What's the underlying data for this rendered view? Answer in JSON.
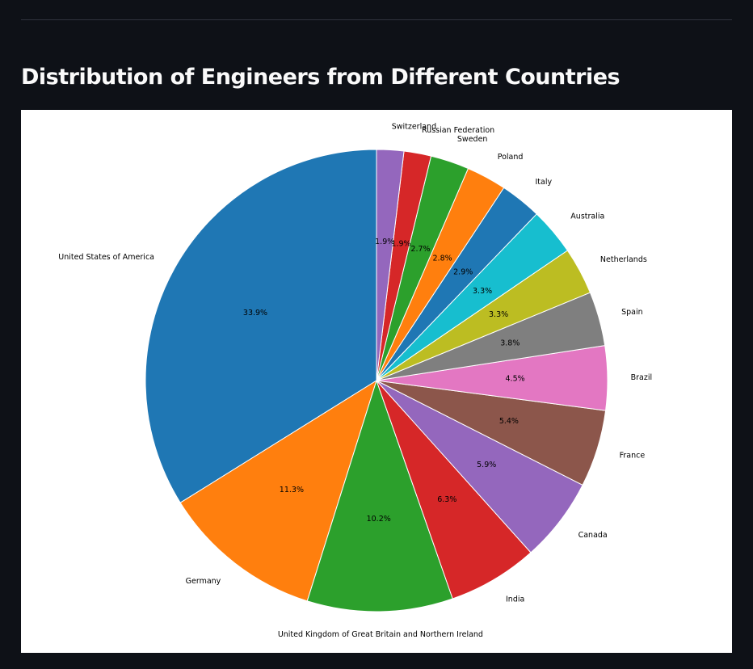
{
  "page": {
    "title": "Distribution of Engineers from Different Countries"
  },
  "chart_data": {
    "type": "pie",
    "title": "",
    "start_angle_deg": 90,
    "direction": "counterclockwise",
    "labels": [
      "United States of America",
      "Germany",
      "United Kingdom of Great Britain and Northern Ireland",
      "India",
      "Canada",
      "France",
      "Brazil",
      "Spain",
      "Netherlands",
      "Australia",
      "Italy",
      "Poland",
      "Sweden",
      "Russian Federation",
      "Switzerland"
    ],
    "values": [
      33.9,
      11.3,
      10.2,
      6.3,
      5.9,
      5.4,
      4.5,
      3.8,
      3.3,
      3.3,
      2.9,
      2.8,
      2.7,
      1.9,
      1.9
    ],
    "percent_labels": [
      "33.9%",
      "11.3%",
      "10.2%",
      "6.3%",
      "5.9%",
      "5.4%",
      "4.5%",
      "3.8%",
      "3.3%",
      "3.3%",
      "2.9%",
      "2.8%",
      "2.7%",
      "1.9%",
      "1.9%"
    ],
    "colors": [
      "#1f77b4",
      "#ff7f0e",
      "#2ca02c",
      "#d62728",
      "#9467bd",
      "#8c564b",
      "#e377c2",
      "#7f7f7f",
      "#bcbd22",
      "#17becf",
      "#1f77b4",
      "#ff7f0e",
      "#2ca02c",
      "#d62728",
      "#9467bd"
    ],
    "legend": "none"
  }
}
